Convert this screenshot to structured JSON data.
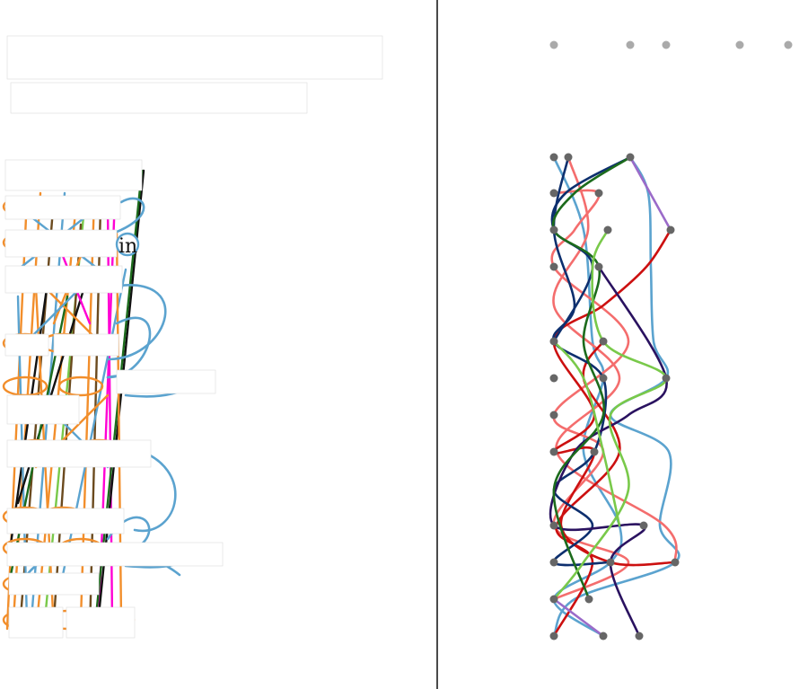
{
  "visible_text": {
    "node_fragment": "in"
  },
  "colors": {
    "background": "#ffffff",
    "divider": "#4a4a4a",
    "node": "#666666",
    "top_dots": "#aaaaaa",
    "steelblue": "#5ba3cf",
    "orange": "#f28e2b",
    "salmon": "#f46d6d",
    "red": "#cc1010",
    "navy": "#0d2f6e",
    "indigo": "#2a1260",
    "darkgreen": "#1c6b1c",
    "lightgreen": "#79c94a",
    "purple": "#9b6bc9",
    "magenta": "#ff00d4",
    "brown": "#6b4a1e",
    "black": "#111111"
  },
  "redacted_text_blocks": 16
}
